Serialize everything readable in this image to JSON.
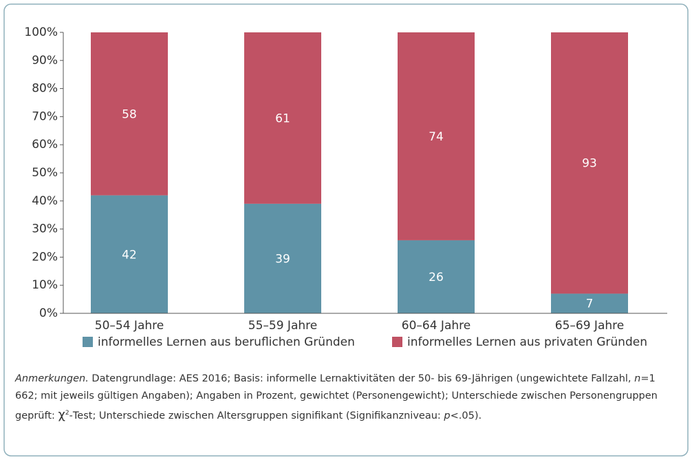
{
  "chart_data": {
    "type": "stacked_bar",
    "categories": [
      "50–54 Jahre",
      "55–59 Jahre",
      "60–64 Jahre",
      "65–69 Jahre"
    ],
    "series": [
      {
        "name": "informelles Lernen aus beruflichen Gründen",
        "color": "#5f93a7",
        "values": [
          42,
          39,
          26,
          7
        ]
      },
      {
        "name": "informelles Lernen aus privaten Gründen",
        "color": "#c05264",
        "values": [
          58,
          61,
          74,
          93
        ]
      }
    ],
    "ylim": [
      0,
      100
    ],
    "yticks": [
      {
        "value": 0,
        "label": "0%"
      },
      {
        "value": 10,
        "label": "10%"
      },
      {
        "value": 20,
        "label": "20%"
      },
      {
        "value": 30,
        "label": "30%"
      },
      {
        "value": 40,
        "label": "40%"
      },
      {
        "value": 50,
        "label": "50%"
      },
      {
        "value": 60,
        "label": "60%"
      },
      {
        "value": 70,
        "label": "70%"
      },
      {
        "value": 80,
        "label": "80%"
      },
      {
        "value": 90,
        "label": "90%"
      },
      {
        "value": 100,
        "label": "100%"
      }
    ],
    "note": [
      "Anmerkungen.",
      " Datengrundlage: AES 2016; Basis: informelle Lernaktivitäten der 50- bis 69-Jährigen (ungewichtete Fallzahl, ",
      "n",
      "=1 662; mit jeweils gültigen Angaben); Angaben in Prozent, gewichtet (Personengewicht); Unterschiede zwischen Personengruppen geprüft: ",
      "χ",
      "2",
      "-Test; Unterschiede zwischen Altersgruppen signifikant (Signifikanzniveau: ",
      "p",
      "<.05)."
    ]
  }
}
